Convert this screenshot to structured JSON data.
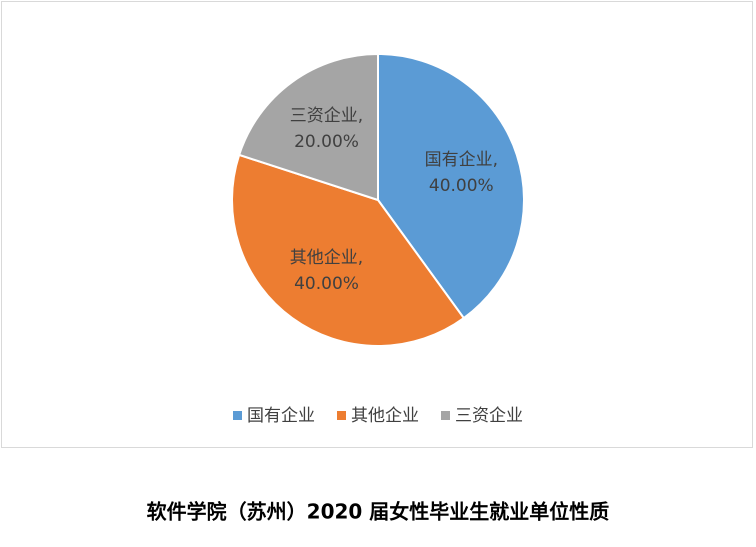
{
  "chart_data": {
    "type": "pie",
    "title": "软件学院（苏州）2020 届女性毕业生就业单位性质",
    "categories": [
      "国有企业",
      "其他企业",
      "三资企业"
    ],
    "values": [
      40,
      40,
      20
    ],
    "value_labels": [
      "40.00%",
      "40.00%",
      "20.00%"
    ],
    "label_separator": ",",
    "colors": [
      "#5b9bd5",
      "#ed7d31",
      "#a5a5a5"
    ],
    "legend": "bottom"
  }
}
